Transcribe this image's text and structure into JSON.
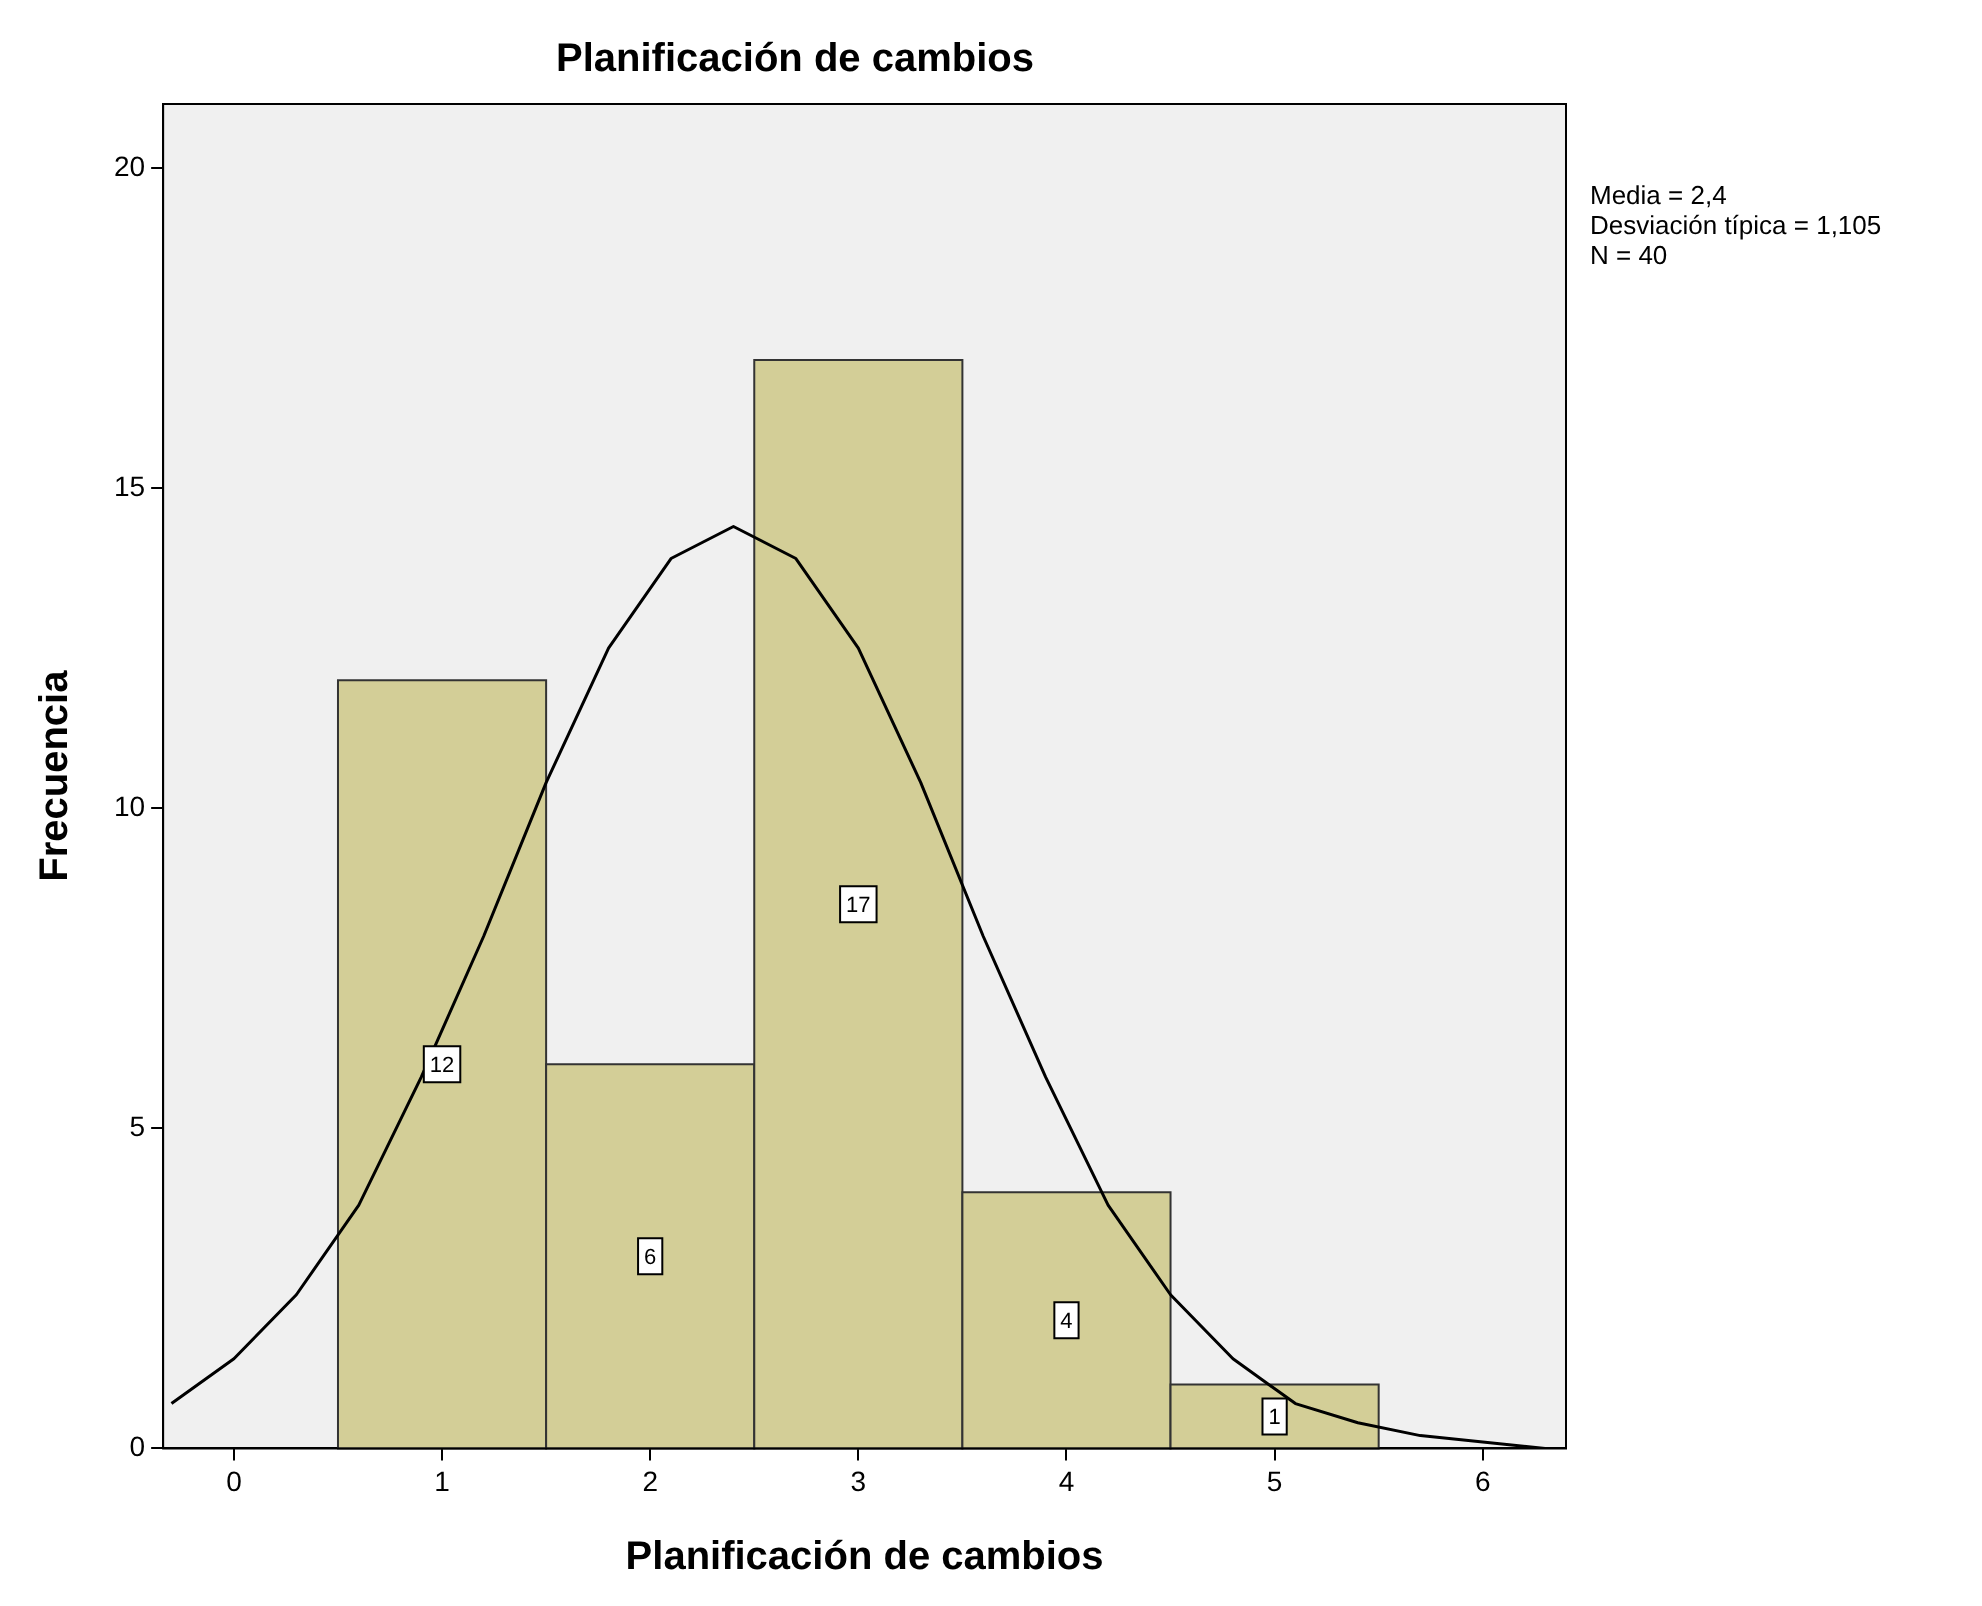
{
  "chart_data": {
    "type": "histogram",
    "title": "Planificación de cambios",
    "xlabel": "Planificación de cambios",
    "ylabel": "Frecuencia",
    "bins": [
      0.5,
      1.5,
      2.5,
      3.5,
      4.5,
      5.5
    ],
    "values": [
      12,
      6,
      17,
      4,
      1
    ],
    "color": "#d3ce97",
    "value_labels": [
      "12",
      "6",
      "17",
      "4",
      "1"
    ],
    "series": [
      {
        "type": "line",
        "color": "#000000",
        "x": [
          -0.3,
          0,
          0.3,
          0.6,
          0.9,
          1.2,
          1.5,
          1.8,
          2.1,
          2.4,
          2.7,
          3.0,
          3.3,
          3.6,
          3.9,
          4.2,
          4.5,
          4.8,
          5.1,
          5.4,
          5.7,
          6.0,
          6.3
        ],
        "values": [
          0.7,
          1.4,
          2.4,
          3.8,
          5.8,
          8.0,
          10.4,
          12.5,
          13.9,
          14.4,
          13.9,
          12.5,
          10.4,
          8.0,
          5.8,
          3.8,
          2.4,
          1.4,
          0.7,
          0.4,
          0.2,
          0.1,
          0.0
        ]
      }
    ],
    "xlim": [
      -0.34,
      6.4
    ],
    "xticks": [
      0,
      1,
      2,
      3,
      4,
      5,
      6
    ],
    "ylim": [
      0,
      21
    ],
    "yticks": [
      0,
      5,
      10,
      15,
      20
    ],
    "grid": false,
    "legend": false,
    "annotations": [
      "Media = 2,4",
      "Desviación típica = 1,105",
      "N = 40"
    ]
  }
}
